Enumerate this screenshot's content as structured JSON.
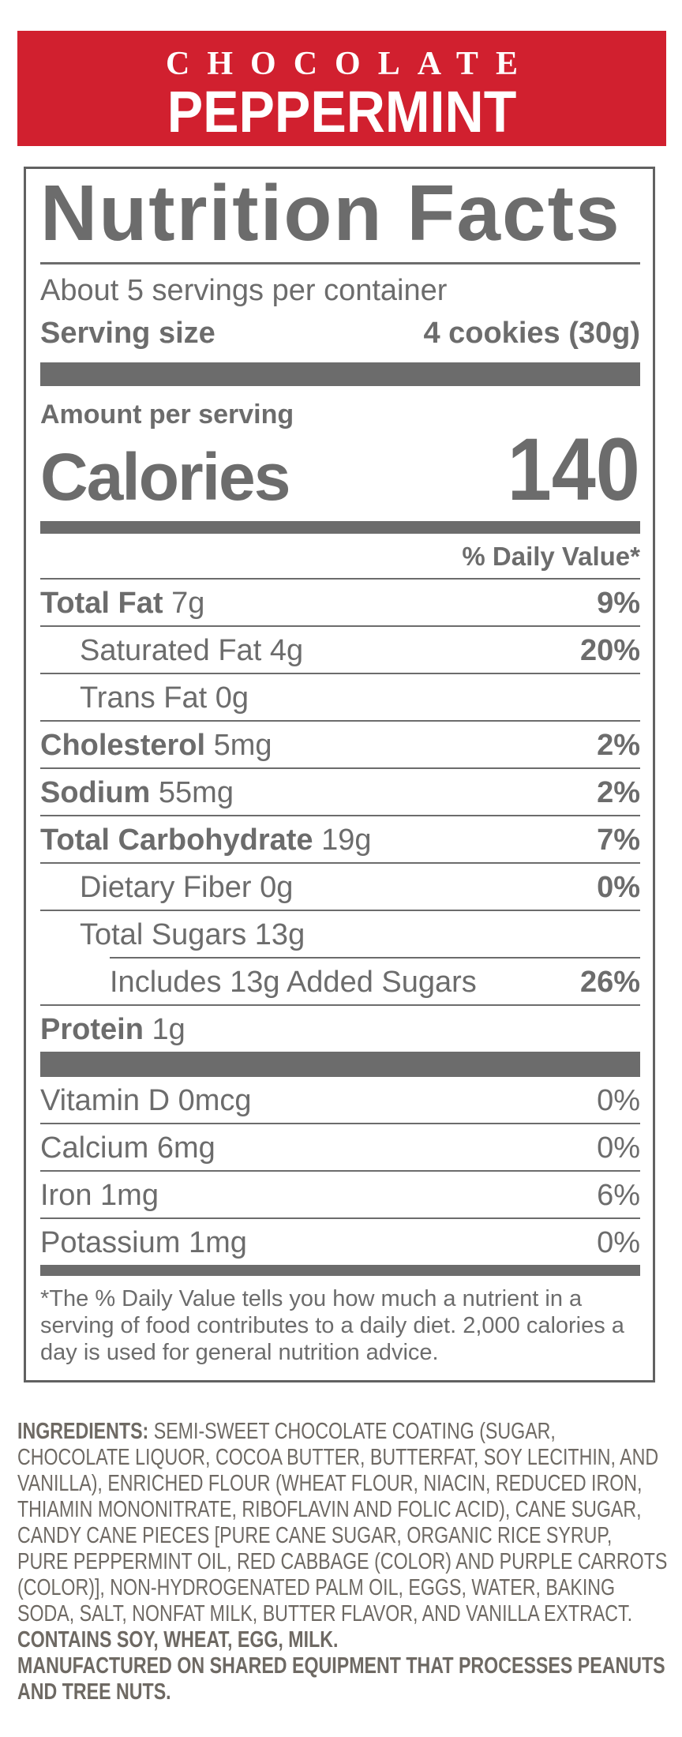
{
  "banner": {
    "line1": "CHOCOLATE",
    "line2": "PEPPERMINT"
  },
  "label": {
    "title": "Nutrition Facts",
    "servings_per_container": "About 5 servings per container",
    "serving_size_label": "Serving size",
    "serving_size_value": "4 cookies (30g)",
    "amount_per_serving": "Amount per serving",
    "calories_label": "Calories",
    "calories_value": "140",
    "daily_value_header": "% Daily Value*",
    "rows": [
      {
        "name": "Total Fat",
        "amount": "7g",
        "dv": "9%",
        "bold": true,
        "dv_bold": true,
        "indent": 0
      },
      {
        "name": "Saturated Fat",
        "amount": "4g",
        "dv": "20%",
        "bold": false,
        "dv_bold": true,
        "indent": 1
      },
      {
        "name": "Trans Fat",
        "amount": "0g",
        "dv": "",
        "bold": false,
        "dv_bold": false,
        "indent": 1
      },
      {
        "name": "Cholesterol",
        "amount": "5mg",
        "dv": "2%",
        "bold": true,
        "dv_bold": true,
        "indent": 0
      },
      {
        "name": "Sodium",
        "amount": "55mg",
        "dv": "2%",
        "bold": true,
        "dv_bold": true,
        "indent": 0
      },
      {
        "name": "Total Carbohydrate",
        "amount": "19g",
        "dv": "7%",
        "bold": true,
        "dv_bold": true,
        "indent": 0
      },
      {
        "name": "Dietary Fiber",
        "amount": "0g",
        "dv": "0%",
        "bold": false,
        "dv_bold": true,
        "indent": 1
      },
      {
        "name": "Total Sugars",
        "amount": "13g",
        "dv": "",
        "bold": false,
        "dv_bold": false,
        "indent": 1
      },
      {
        "name": "Includes 13g Added Sugars",
        "amount": "",
        "dv": "26%",
        "bold": false,
        "dv_bold": true,
        "indent": 2
      },
      {
        "name": "Protein",
        "amount": "1g",
        "dv": "",
        "bold": true,
        "dv_bold": false,
        "indent": 0
      }
    ],
    "vitamins": [
      {
        "name": "Vitamin D",
        "amount": "0mcg",
        "dv": "0%",
        "bold": false,
        "dv_bold": false,
        "indent": 0
      },
      {
        "name": "Calcium",
        "amount": "6mg",
        "dv": "0%",
        "bold": false,
        "dv_bold": false,
        "indent": 0
      },
      {
        "name": "Iron",
        "amount": "1mg",
        "dv": "6%",
        "bold": false,
        "dv_bold": false,
        "indent": 0
      },
      {
        "name": "Potassium",
        "amount": "1mg",
        "dv": "0%",
        "bold": false,
        "dv_bold": false,
        "indent": 0
      }
    ],
    "footnote": "*The % Daily Value tells you how much a nutrient in a serving of food contributes to a daily diet. 2,000 calories a day is used for general nutrition advice."
  },
  "ingredients": {
    "heading": "INGREDIENTS:",
    "body": "SEMI-SWEET CHOCOLATE COATING (SUGAR, CHOCOLATE LIQUOR, COCOA BUTTER, BUTTERFAT, SOY LECITHIN, AND VANILLA), ENRICHED FLOUR (WHEAT FLOUR, NIACIN, REDUCED IRON, THIAMIN MONONITRATE, RIBOFLAVIN AND FOLIC ACID), CANE SUGAR, CANDY CANE PIECES [PURE CANE SUGAR, ORGANIC RICE SYRUP, PURE PEPPERMINT OIL, RED CABBAGE (COLOR) AND PURPLE CARROTS (COLOR)], NON-HYDROGENATED PALM OIL, EGGS, WATER, BAKING SODA, SALT, NONFAT MILK, BUTTER FLAVOR, AND VANILLA EXTRACT.",
    "contains": "CONTAINS SOY, WHEAT, EGG, MILK.",
    "manufactured": "MANUFACTURED ON SHARED EQUIPMENT THAT PROCESSES PEANUTS AND TREE NUTS."
  },
  "colors": {
    "banner_red": "#d1202f",
    "banner_text": "#ffffff",
    "label_gray": "#6c6c6c",
    "ingredients_gray": "#6e6963",
    "background": "#ffffff"
  }
}
